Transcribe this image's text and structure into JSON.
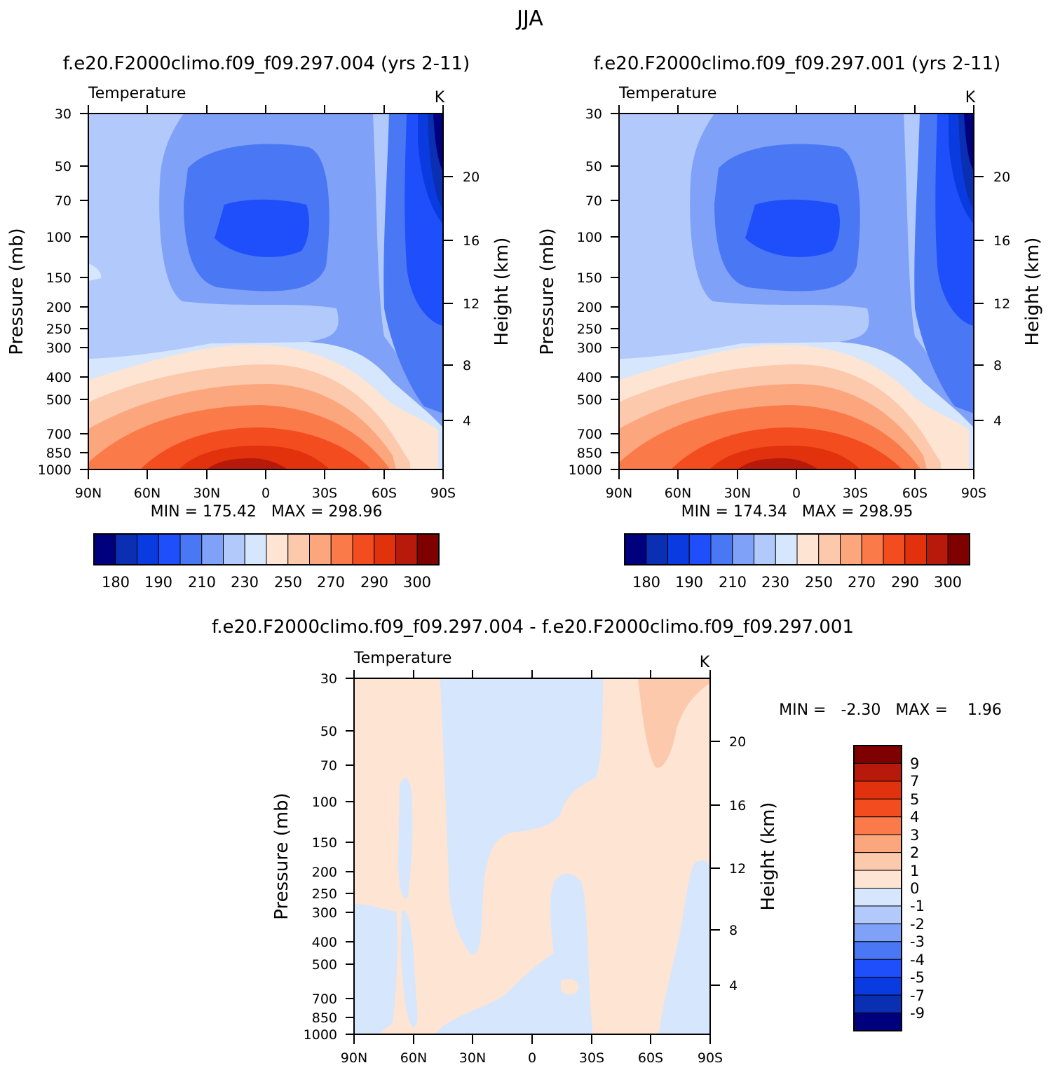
{
  "page_title": "JJA",
  "colors": {
    "temp_palette": [
      "#00007f",
      "#0a2fb2",
      "#0a3be0",
      "#1f4ffb",
      "#4a78f5",
      "#7fa1f7",
      "#b1c9fb",
      "#d6e6fc",
      "#fee5d3",
      "#fcc9ad",
      "#fca67e",
      "#fb7a4a",
      "#f34c1f",
      "#e1310d",
      "#b71a0a",
      "#7f0000"
    ],
    "diff_palette": [
      "#00007f",
      "#0a2fb2",
      "#0a3be0",
      "#1f4ffb",
      "#4a78f5",
      "#7fa1f7",
      "#b1c9fb",
      "#d6e6fc",
      "#fee5d3",
      "#fcc9ad",
      "#fca67e",
      "#fb7a4a",
      "#f34c1f",
      "#e1310d",
      "#b71a0a",
      "#7f0000"
    ]
  },
  "chart_data": [
    {
      "type": "heatmap",
      "title": "f.e20.F2000climo.f09_f09.297.004 (yrs 2-11)",
      "variable": "Temperature",
      "units": "K",
      "xlabel": "",
      "ylabel": "Pressure (mb)",
      "y2label": "Height (km)",
      "x_ticks": [
        "90N",
        "60N",
        "30N",
        "0",
        "30S",
        "60S",
        "90S"
      ],
      "y_ticks": [
        "30",
        "50",
        "70",
        "100",
        "150",
        "200",
        "250",
        "300",
        "400",
        "500",
        "700",
        "850",
        "1000"
      ],
      "y2_ticks": [
        "20",
        "16",
        "12",
        "8",
        "4"
      ],
      "stats": "MIN = 175.42   MAX = 298.96",
      "min": 175.42,
      "max": 298.96,
      "colorbar_labels": [
        "180",
        "190",
        "210",
        "230",
        "250",
        "270",
        "290",
        "300"
      ]
    },
    {
      "type": "heatmap",
      "title": "f.e20.F2000climo.f09_f09.297.001 (yrs 2-11)",
      "variable": "Temperature",
      "units": "K",
      "xlabel": "",
      "ylabel": "Pressure (mb)",
      "y2label": "Height (km)",
      "x_ticks": [
        "90N",
        "60N",
        "30N",
        "0",
        "30S",
        "60S",
        "90S"
      ],
      "y_ticks": [
        "30",
        "50",
        "70",
        "100",
        "150",
        "200",
        "250",
        "300",
        "400",
        "500",
        "700",
        "850",
        "1000"
      ],
      "y2_ticks": [
        "20",
        "16",
        "12",
        "8",
        "4"
      ],
      "stats": "MIN = 174.34   MAX = 298.95",
      "min": 174.34,
      "max": 298.95,
      "colorbar_labels": [
        "180",
        "190",
        "210",
        "230",
        "250",
        "270",
        "290",
        "300"
      ]
    },
    {
      "type": "heatmap",
      "title": "f.e20.F2000climo.f09_f09.297.004 - f.e20.F2000climo.f09_f09.297.001",
      "variable": "Temperature",
      "units": "K",
      "xlabel": "",
      "ylabel": "Pressure (mb)",
      "y2label": "Height (km)",
      "x_ticks": [
        "90N",
        "60N",
        "30N",
        "0",
        "30S",
        "60S",
        "90S"
      ],
      "y_ticks": [
        "30",
        "50",
        "70",
        "100",
        "150",
        "200",
        "250",
        "300",
        "400",
        "500",
        "700",
        "850",
        "1000"
      ],
      "y2_ticks": [
        "20",
        "16",
        "12",
        "8",
        "4"
      ],
      "stats": "MIN =   -2.30   MAX =    1.96",
      "min": -2.3,
      "max": 1.96,
      "colorbar_labels": [
        "9",
        "7",
        "5",
        "4",
        "3",
        "2",
        "1",
        "0",
        "-1",
        "-2",
        "-3",
        "-4",
        "-5",
        "-7",
        "-9"
      ]
    }
  ]
}
